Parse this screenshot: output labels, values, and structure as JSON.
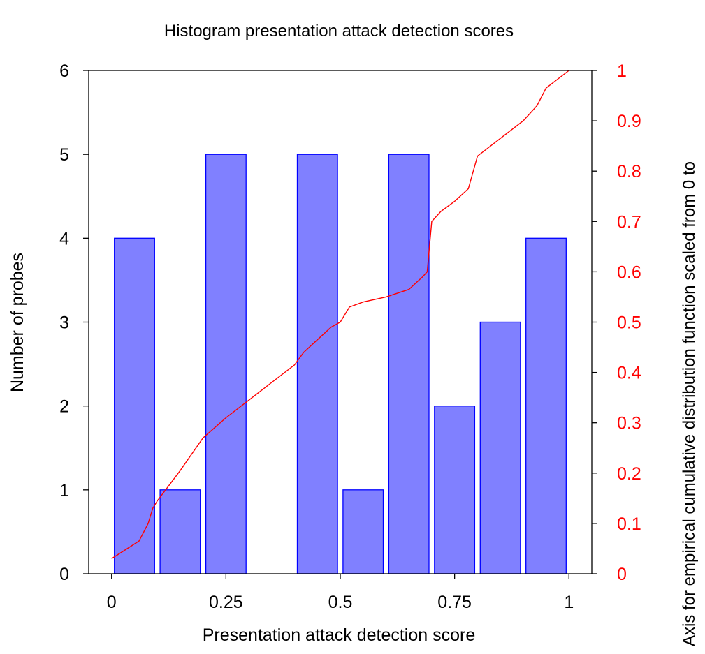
{
  "chart_data": {
    "type": "bar",
    "title": "Histogram presentation attack detection scores",
    "xlabel": "Presentation attack detection score",
    "ylabel": "Number of probes",
    "y2label": "Axis for empirical cumulative distribution function scaled from 0 to",
    "xlim": [
      -0.05,
      1.05
    ],
    "ylim": [
      0,
      6
    ],
    "y2lim": [
      0,
      1
    ],
    "xticks": [
      0,
      0.25,
      0.5,
      0.75,
      1
    ],
    "xtick_labels": [
      "0",
      "0.25",
      "0.5",
      "0.75",
      "1"
    ],
    "yticks": [
      0,
      1,
      2,
      3,
      4,
      5,
      6
    ],
    "ytick_labels": [
      "0",
      "1",
      "2",
      "3",
      "4",
      "5",
      "6"
    ],
    "y2ticks": [
      0,
      0.1,
      0.2,
      0.3,
      0.4,
      0.5,
      0.6,
      0.7,
      0.8,
      0.9,
      1
    ],
    "y2tick_labels": [
      "0",
      "0.1",
      "0.2",
      "0.3",
      "0.4",
      "0.5",
      "0.6",
      "0.7",
      "0.8",
      "0.9",
      "1"
    ],
    "grid": false,
    "series": [
      {
        "type": "bar",
        "color": "#8080ff",
        "edge_color": "#0000ff",
        "bins": [
          {
            "x0": 0.0,
            "x1": 0.1,
            "value": 4
          },
          {
            "x0": 0.1,
            "x1": 0.2,
            "value": 1
          },
          {
            "x0": 0.2,
            "x1": 0.3,
            "value": 5
          },
          {
            "x0": 0.3,
            "x1": 0.4,
            "value": 0
          },
          {
            "x0": 0.4,
            "x1": 0.5,
            "value": 5
          },
          {
            "x0": 0.5,
            "x1": 0.6,
            "value": 1
          },
          {
            "x0": 0.6,
            "x1": 0.7,
            "value": 5
          },
          {
            "x0": 0.7,
            "x1": 0.8,
            "value": 2
          },
          {
            "x0": 0.8,
            "x1": 0.9,
            "value": 3
          },
          {
            "x0": 0.9,
            "x1": 1.0,
            "value": 4
          }
        ]
      },
      {
        "type": "line",
        "axis": "right",
        "color": "#ff0000",
        "x": [
          0.0,
          0.06,
          0.08,
          0.09,
          0.1,
          0.15,
          0.2,
          0.25,
          0.3,
          0.35,
          0.4,
          0.42,
          0.45,
          0.48,
          0.5,
          0.52,
          0.55,
          0.6,
          0.65,
          0.68,
          0.69,
          0.7,
          0.72,
          0.75,
          0.78,
          0.8,
          0.85,
          0.9,
          0.93,
          0.95,
          1.0
        ],
        "y": [
          0.03,
          0.065,
          0.1,
          0.13,
          0.145,
          0.205,
          0.27,
          0.31,
          0.345,
          0.38,
          0.415,
          0.44,
          0.465,
          0.49,
          0.5,
          0.53,
          0.54,
          0.55,
          0.565,
          0.59,
          0.6,
          0.7,
          0.72,
          0.74,
          0.765,
          0.83,
          0.865,
          0.9,
          0.93,
          0.965,
          1.0
        ]
      }
    ]
  }
}
